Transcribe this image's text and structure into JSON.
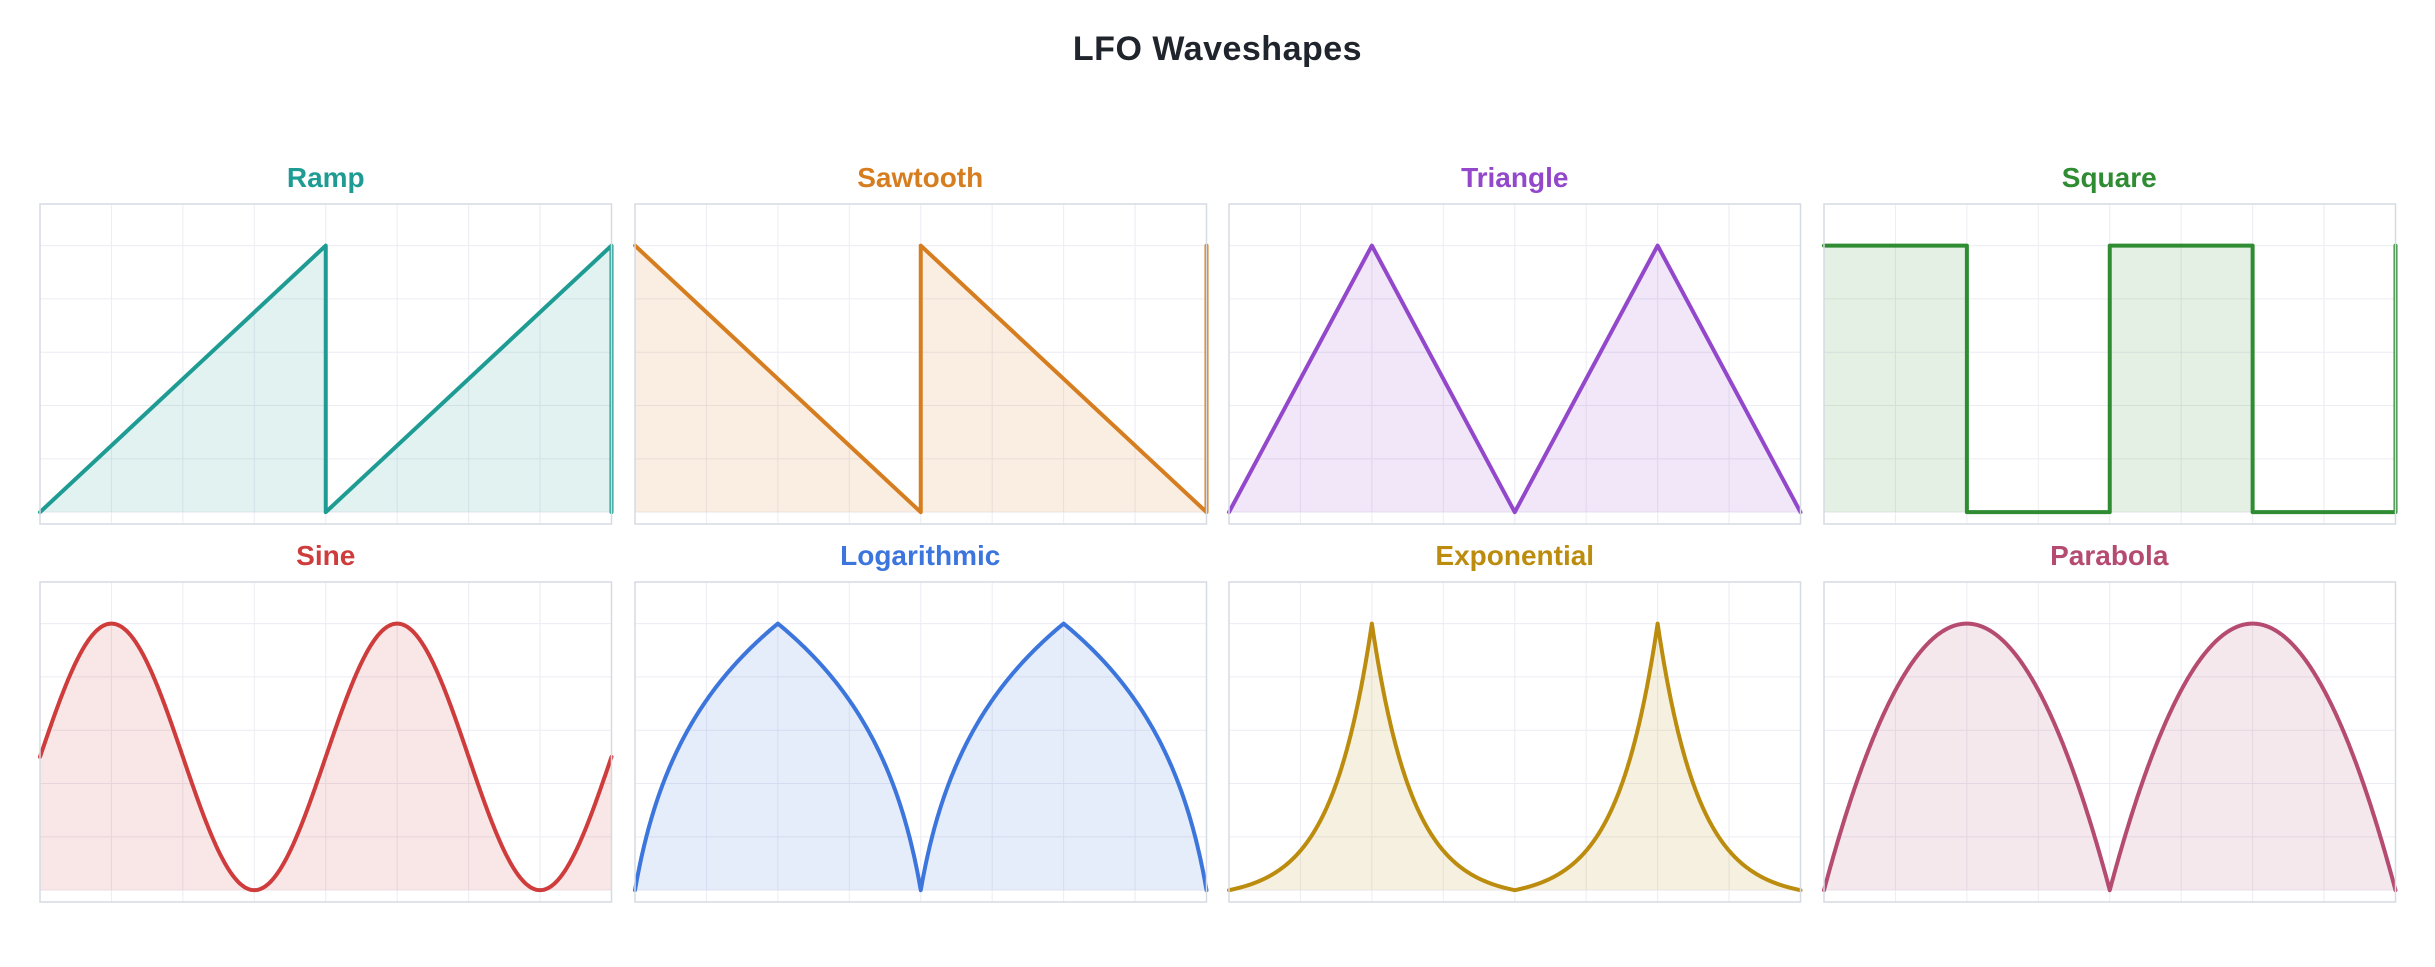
{
  "figure": {
    "background": "#FFFFFF",
    "title": "LFO Waveshapes",
    "title_color": "#20242C"
  },
  "chart_data": {
    "type": "line",
    "title": "LFO Waveshapes",
    "layout": {
      "rows": 2,
      "cols": 4
    },
    "x_range": [
      0,
      1
    ],
    "y_range": [
      0,
      1
    ],
    "cycles_per_plot": 2,
    "legend": "none",
    "axis_tick_labels": "none",
    "grid": {
      "visible": true,
      "x_divisions": 8,
      "y_values": [
        0,
        0.2,
        0.4,
        0.6,
        0.8,
        1.0
      ],
      "line_color": "#ECECF3",
      "border_color": "#D6DAE2"
    },
    "subplots": [
      {
        "title": "Ramp",
        "waveform": "ramp",
        "line_color": "#1E9C94",
        "fill_color": "rgba(30,156,148,0.13)",
        "points": [
          [
            0,
            0
          ],
          [
            0.5,
            1
          ],
          [
            0.5,
            0
          ],
          [
            1,
            1
          ],
          [
            1,
            0
          ]
        ]
      },
      {
        "title": "Sawtooth",
        "waveform": "sawtooth",
        "line_color": "#D67D20",
        "fill_color": "rgba(214,125,32,0.13)",
        "points": [
          [
            0,
            1
          ],
          [
            0.5,
            0
          ],
          [
            0.5,
            1
          ],
          [
            1,
            0
          ],
          [
            1,
            1
          ]
        ]
      },
      {
        "title": "Triangle",
        "waveform": "triangle",
        "line_color": "#9348CB",
        "fill_color": "rgba(147,72,203,0.13)",
        "points": [
          [
            0,
            0
          ],
          [
            0.25,
            1
          ],
          [
            0.5,
            0
          ],
          [
            0.75,
            1
          ],
          [
            1,
            0
          ]
        ]
      },
      {
        "title": "Square",
        "waveform": "square",
        "line_color": "#2F8C32",
        "fill_color": "rgba(47,140,50,0.13)",
        "points": [
          [
            0,
            1
          ],
          [
            0.25,
            1
          ],
          [
            0.25,
            0
          ],
          [
            0.5,
            0
          ],
          [
            0.5,
            1
          ],
          [
            0.75,
            1
          ],
          [
            0.75,
            0
          ],
          [
            1,
            0
          ],
          [
            1,
            1
          ]
        ]
      },
      {
        "title": "Sine",
        "waveform": "sine",
        "line_color": "#CE3C3C",
        "fill_color": "rgba(206,60,60,0.13)",
        "formula": "y = 0.5 + 0.5*sin(2pi*2x)",
        "sample_step": 0.0625,
        "sample_y": [
          0.5,
          0.854,
          1,
          0.854,
          0.5,
          0.146,
          0,
          0.146,
          0.5,
          0.854,
          1,
          0.854,
          0.5,
          0.146,
          0,
          0.146,
          0.5
        ]
      },
      {
        "title": "Logarithmic",
        "waveform": "logarithmic",
        "line_color": "#3C76DC",
        "fill_color": "rgba(60,118,220,0.13)",
        "k": 6,
        "formula": "y = ln(1+6u)/ln(7), u = triangle(2x)",
        "sample_step": 0.0625,
        "sample_y": [
          0,
          0.471,
          0.712,
          0.876,
          1,
          0.876,
          0.712,
          0.471,
          0,
          0.471,
          0.712,
          0.876,
          1,
          0.876,
          0.712,
          0.471,
          0
        ]
      },
      {
        "title": "Exponential",
        "waveform": "exponential",
        "line_color": "#BC8C0E",
        "fill_color": "rgba(188,140,14,0.13)",
        "k": 3.5,
        "formula": "y = (e^(3.5u)-1)/(e^3.5-1), u = triangle(2x)",
        "sample_step": 0.0625,
        "sample_y": [
          0,
          0.044,
          0.148,
          0.399,
          1,
          0.399,
          0.148,
          0.044,
          0,
          0.044,
          0.148,
          0.399,
          1,
          0.399,
          0.148,
          0.044,
          0
        ]
      },
      {
        "title": "Parabola",
        "waveform": "parabola",
        "line_color": "#B54B70",
        "fill_color": "rgba(181,75,112,0.13)",
        "formula": "y = 4u(1-u), u = frac(2x)",
        "sample_step": 0.0625,
        "sample_y": [
          0,
          0.4375,
          0.75,
          0.9375,
          1,
          0.9375,
          0.75,
          0.4375,
          0,
          0.4375,
          0.75,
          0.9375,
          1,
          0.9375,
          0.75,
          0.4375,
          0
        ]
      }
    ]
  }
}
